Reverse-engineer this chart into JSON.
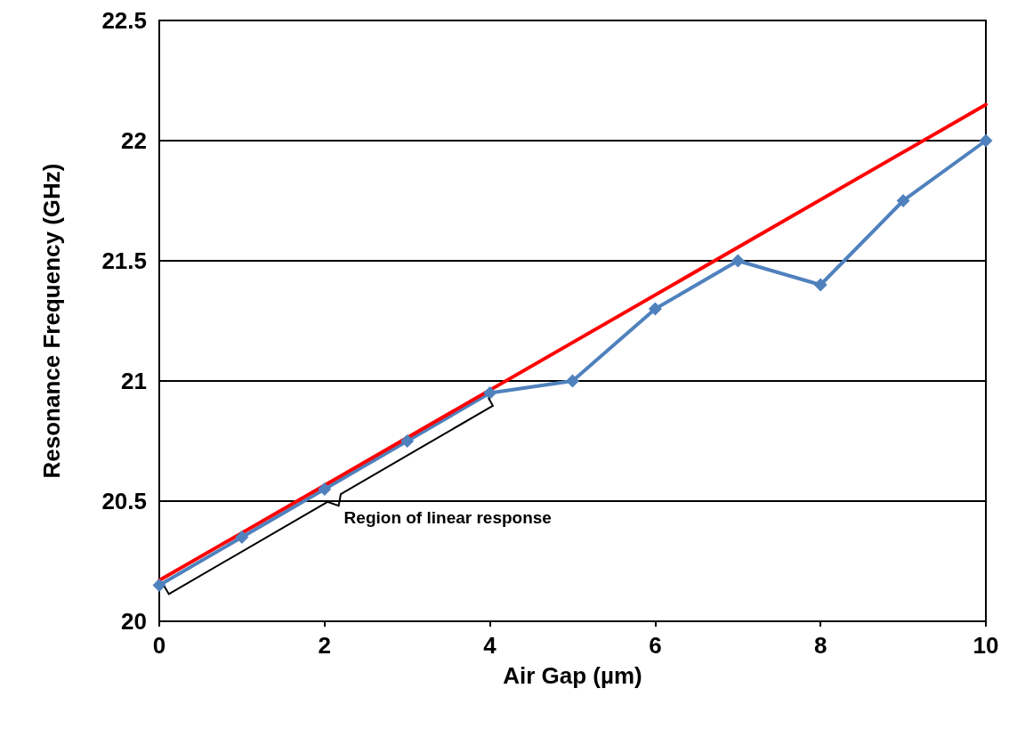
{
  "chart_data": {
    "type": "line",
    "xlabel": "Air Gap (µm)",
    "ylabel": "Resonance Frequency (GHz)",
    "x": [
      0,
      1,
      2,
      3,
      4,
      5,
      6,
      7,
      8,
      9,
      10
    ],
    "series": [
      {
        "color": "#4f81bd",
        "values": [
          20.15,
          20.35,
          20.55,
          20.75,
          20.95,
          21.0,
          21.3,
          21.5,
          21.4,
          21.75,
          22.0
        ],
        "marker": "diamond"
      },
      {
        "type": "line",
        "color": "#ff0000",
        "x": [
          0,
          10
        ],
        "values": [
          20.17,
          22.15
        ],
        "marker": "none"
      }
    ],
    "xlim": [
      0,
      10
    ],
    "xticks": [
      0,
      2,
      4,
      6,
      8,
      10
    ],
    "ylim": [
      20,
      22.5
    ],
    "yticks": [
      20,
      20.5,
      21,
      21.5,
      22,
      22.5
    ],
    "grid": "y",
    "line_style": "solid",
    "annotations": [
      "Region of linear response"
    ]
  }
}
